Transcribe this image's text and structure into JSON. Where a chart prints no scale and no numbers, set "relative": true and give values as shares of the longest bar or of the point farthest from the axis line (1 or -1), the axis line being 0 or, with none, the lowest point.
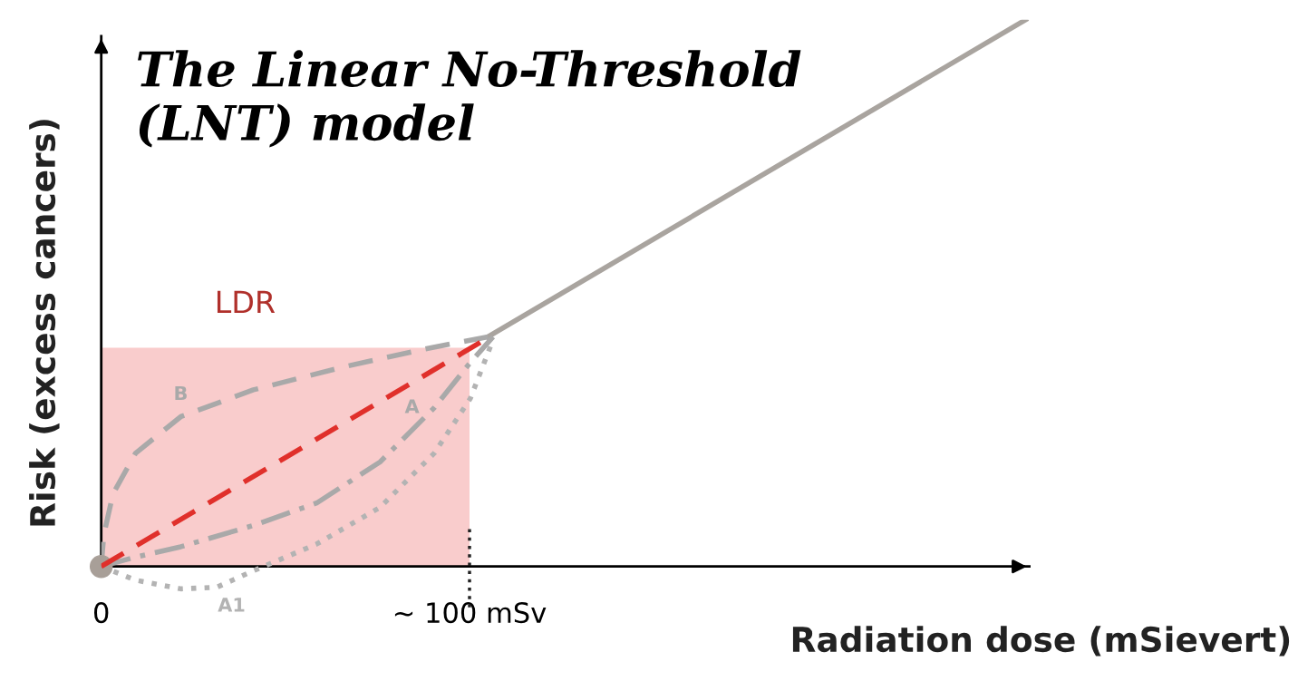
{
  "chart_data": {
    "type": "line",
    "relative": true,
    "legend": false,
    "title": "The Linear No-Threshold\n(LNT) model",
    "xlabel": "Radiation dose (mSievert)",
    "ylabel": "Risk (excess cancers)",
    "xlim": [
      0,
      252
    ],
    "xticks": [
      0,
      {
        "value": 100,
        "label": "~ 100 mSv"
      }
    ],
    "series": [
      {
        "type": "area",
        "color": "#f9cccc",
        "x": [
          0,
          100
        ],
        "values": [
          0.4,
          0.4
        ]
      },
      {
        "color": "#a9a49f",
        "line_style": "solid",
        "x": [
          105,
          251
        ],
        "values": [
          0.42,
          1.0
        ]
      },
      {
        "name": "B",
        "color": "#a9a9a9",
        "line_style": "dashed",
        "x": [
          0,
          0.7,
          3.2,
          9.3,
          21.6,
          41.3,
          65.8,
          88,
          105
        ],
        "values": [
          0,
          0.058,
          0.133,
          0.207,
          0.274,
          0.323,
          0.365,
          0.398,
          0.42
        ]
      },
      {
        "name": "A",
        "color": "#a9a9a9",
        "line_style": "dashdot",
        "x": [
          0,
          9.3,
          21.6,
          41.3,
          58.5,
          75.7,
          90.4,
          100.2,
          106.4
        ],
        "values": [
          0,
          0.017,
          0.036,
          0.075,
          0.116,
          0.191,
          0.29,
          0.373,
          0.42
        ]
      },
      {
        "name": "A1",
        "color": "#b3b3b3",
        "line_style": "dotted",
        "x": [
          0,
          9.3,
          21.6,
          31.4,
          41.3,
          58.5,
          75.7,
          90.4,
          100.2,
          106.4
        ],
        "values": [
          0,
          -0.025,
          -0.041,
          -0.038,
          -0.008,
          0.041,
          0.108,
          0.207,
          0.307,
          0.415
        ]
      },
      {
        "color": "#e0302b",
        "line_style": "dashed",
        "x": [
          0,
          103
        ],
        "values": [
          0,
          0.41
        ]
      },
      {
        "type": "scatter",
        "color": "#a89f98",
        "marker": "circle",
        "x": [
          0
        ],
        "values": [
          0
        ]
      }
    ],
    "ref_lines": [
      {
        "axis": "x",
        "value": 100,
        "line_style": "dotted",
        "color": "#222222"
      }
    ],
    "annotations": [
      "LDR"
    ]
  }
}
